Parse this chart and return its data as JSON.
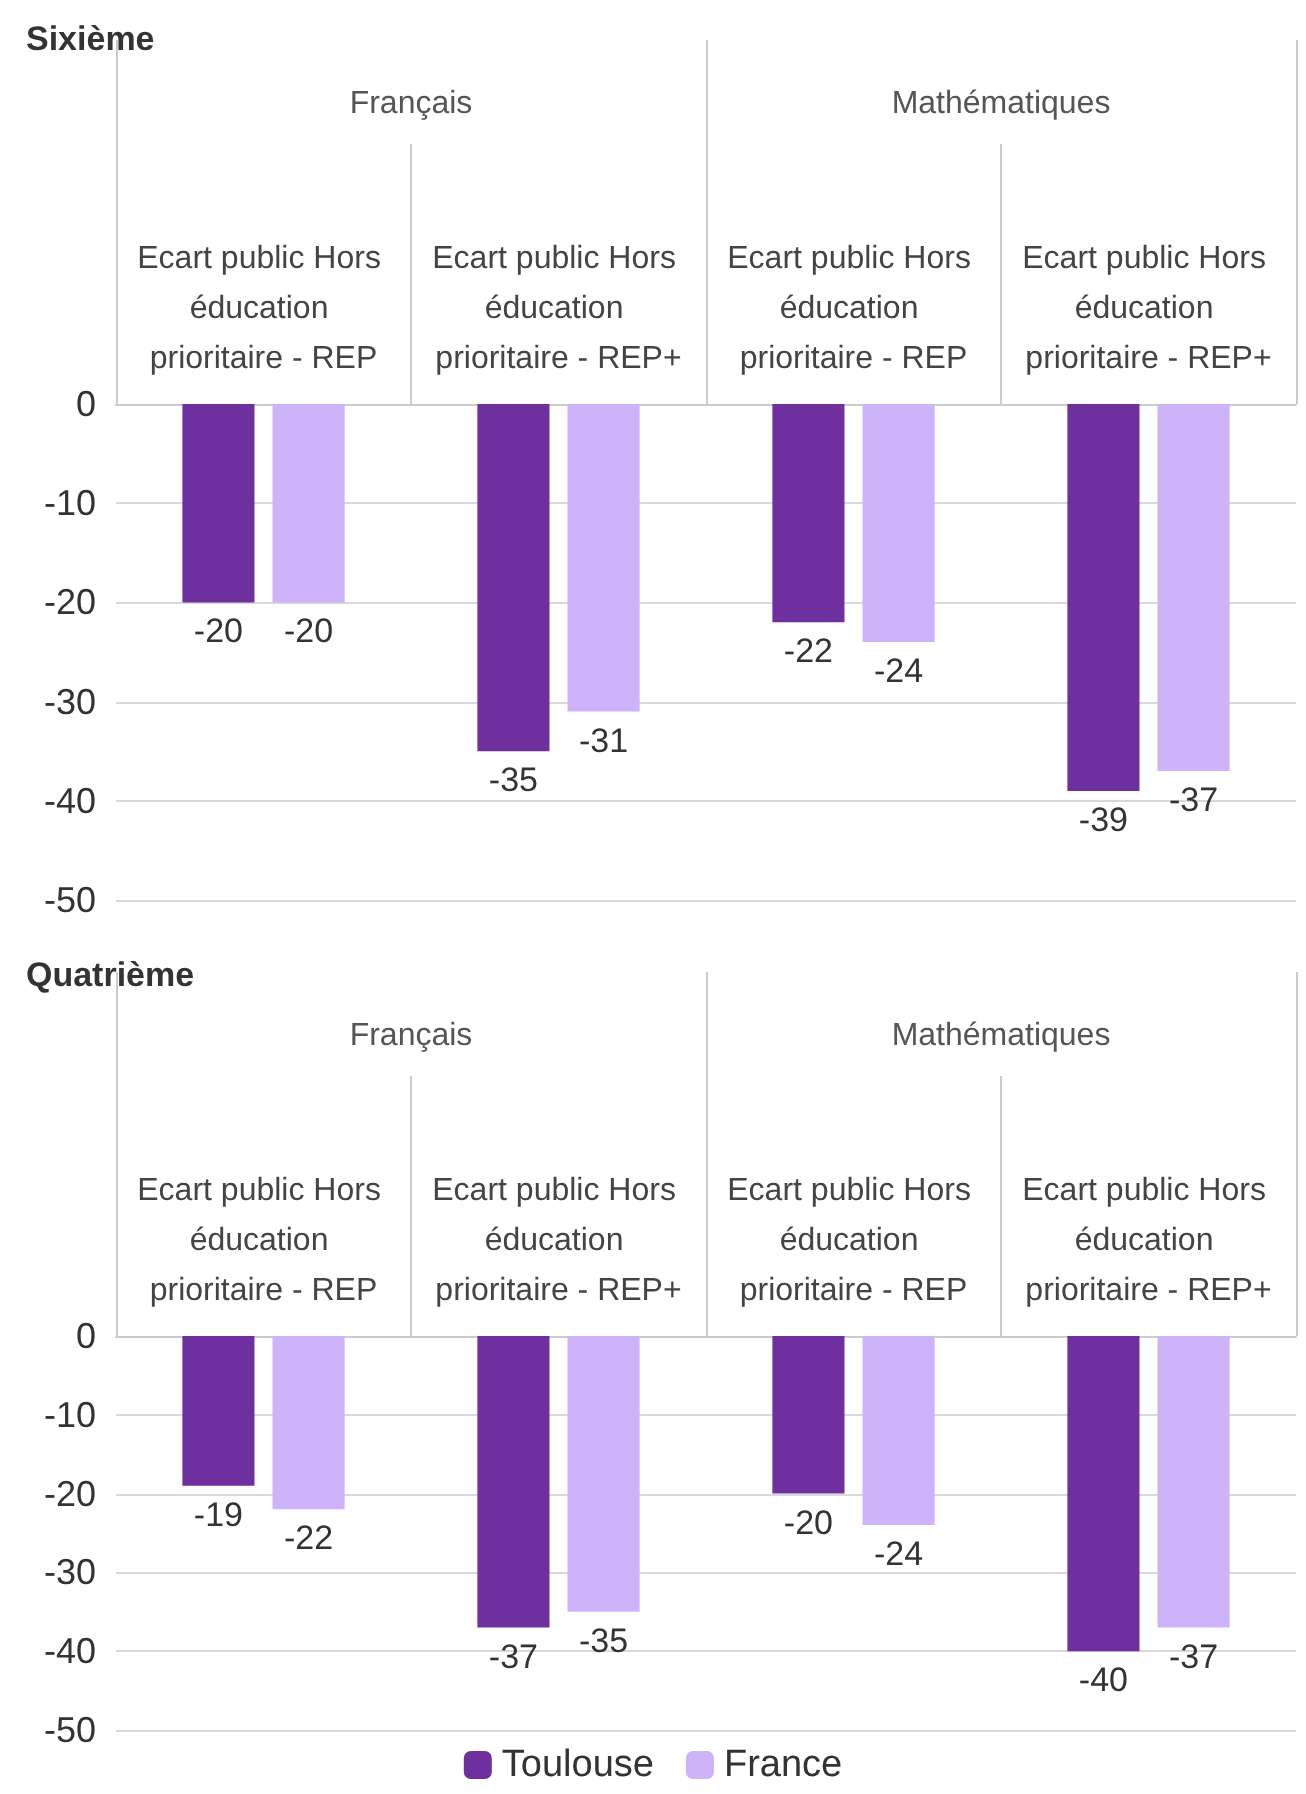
{
  "chart_data": [
    {
      "type": "bar",
      "title": "Sixième",
      "annotations": [
        "Français",
        "Mathématiques"
      ],
      "categories": [
        "Ecart public Hors éducation prioritaire - REP",
        "Ecart public Hors éducation prioritaire - REP+",
        "Ecart public Hors éducation prioritaire - REP",
        "Ecart public Hors éducation prioritaire - REP+"
      ],
      "series": [
        {
          "color": "#6e2f9f",
          "values": [
            -20,
            -35,
            -22,
            -39
          ]
        },
        {
          "color": "#cdb3fa",
          "values": [
            -20,
            -31,
            -24,
            -37
          ]
        }
      ],
      "ylim": [
        -50,
        0
      ],
      "yticks": [
        0,
        -10,
        -20,
        -30,
        -40,
        -50
      ],
      "grid": "y",
      "data_labels": true,
      "legend": false
    },
    {
      "type": "bar",
      "title": "Quatrième",
      "annotations": [
        "Français",
        "Mathématiques"
      ],
      "categories": [
        "Ecart public Hors éducation prioritaire - REP",
        "Ecart public Hors éducation prioritaire - REP+",
        "Ecart public Hors éducation prioritaire - REP",
        "Ecart public Hors éducation prioritaire - REP+"
      ],
      "series": [
        {
          "name": "Toulouse",
          "color": "#6e2f9f",
          "values": [
            -19,
            -37,
            -20,
            -40
          ]
        },
        {
          "name": "France",
          "color": "#cdb3fa",
          "values": [
            -22,
            -35,
            -24,
            -37
          ]
        }
      ],
      "ylim": [
        -50,
        0
      ],
      "yticks": [
        0,
        -10,
        -20,
        -30,
        -40,
        -50
      ],
      "grid": "y",
      "data_labels": true,
      "legend": "bottom"
    }
  ]
}
